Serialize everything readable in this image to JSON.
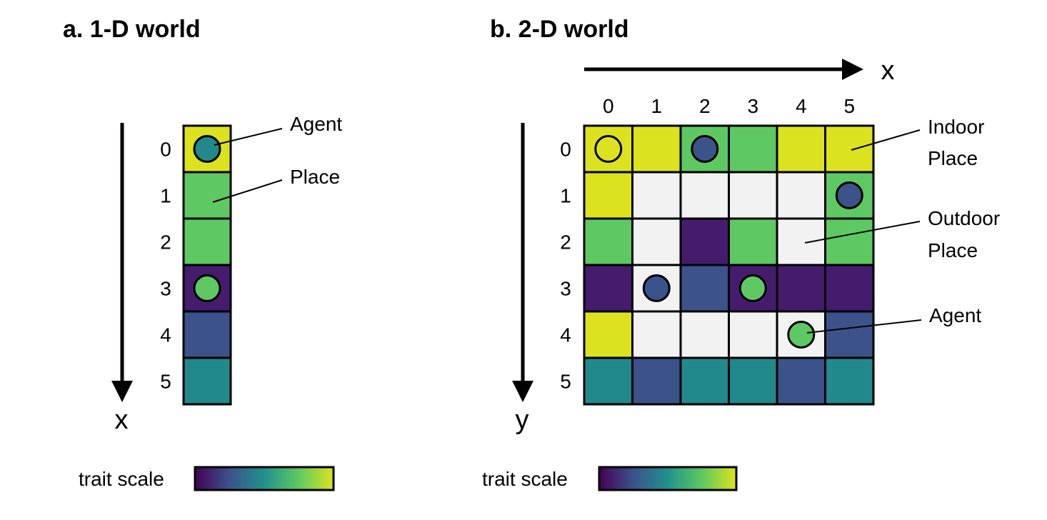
{
  "palette": {
    "yellow": "#dde21f",
    "lightgreen": "#5ec962",
    "teal": "#21898c",
    "blue": "#3b528b",
    "purple": "#451c6d",
    "empty": "#f2f2f2"
  },
  "panel_a": {
    "title": "a. 1-D world",
    "axis_label": "x",
    "indices": [
      "0",
      "1",
      "2",
      "3",
      "4",
      "5"
    ],
    "cells": [
      "yellow",
      "lightgreen",
      "lightgreen",
      "purple",
      "blue",
      "teal"
    ],
    "agents": [
      {
        "cell": 0,
        "color": "teal"
      },
      {
        "cell": 3,
        "color": "lightgreen"
      }
    ],
    "callouts": {
      "agent": "Agent",
      "place": "Place"
    },
    "trait_scale_label": "trait scale"
  },
  "panel_b": {
    "title": "b. 2-D world",
    "x_axis_label": "x",
    "y_axis_label": "y",
    "col_indices": [
      "0",
      "1",
      "2",
      "3",
      "4",
      "5"
    ],
    "row_indices": [
      "0",
      "1",
      "2",
      "3",
      "4",
      "5"
    ],
    "grid": [
      [
        "yellow",
        "yellow",
        "lightgreen",
        "lightgreen",
        "yellow",
        "yellow"
      ],
      [
        "yellow",
        "empty",
        "empty",
        "empty",
        "empty",
        "lightgreen"
      ],
      [
        "lightgreen",
        "empty",
        "purple",
        "lightgreen",
        "empty",
        "lightgreen"
      ],
      [
        "purple",
        "empty",
        "blue",
        "purple",
        "purple",
        "purple"
      ],
      [
        "yellow",
        "empty",
        "empty",
        "empty",
        "empty",
        "blue"
      ],
      [
        "teal",
        "blue",
        "teal",
        "teal",
        "blue",
        "teal"
      ]
    ],
    "agents": [
      {
        "row": 0,
        "col": 0,
        "color": "yellow"
      },
      {
        "row": 0,
        "col": 2,
        "color": "blue"
      },
      {
        "row": 1,
        "col": 5,
        "color": "blue"
      },
      {
        "row": 3,
        "col": 1,
        "color": "blue"
      },
      {
        "row": 3,
        "col": 3,
        "color": "lightgreen"
      },
      {
        "row": 4,
        "col": 4,
        "color": "lightgreen"
      }
    ],
    "callouts": {
      "indoor_line1": "Indoor",
      "indoor_line2": "Place",
      "outdoor_line1": "Outdoor",
      "outdoor_line2": "Place",
      "agent": "Agent"
    },
    "trait_scale_label": "trait scale"
  }
}
